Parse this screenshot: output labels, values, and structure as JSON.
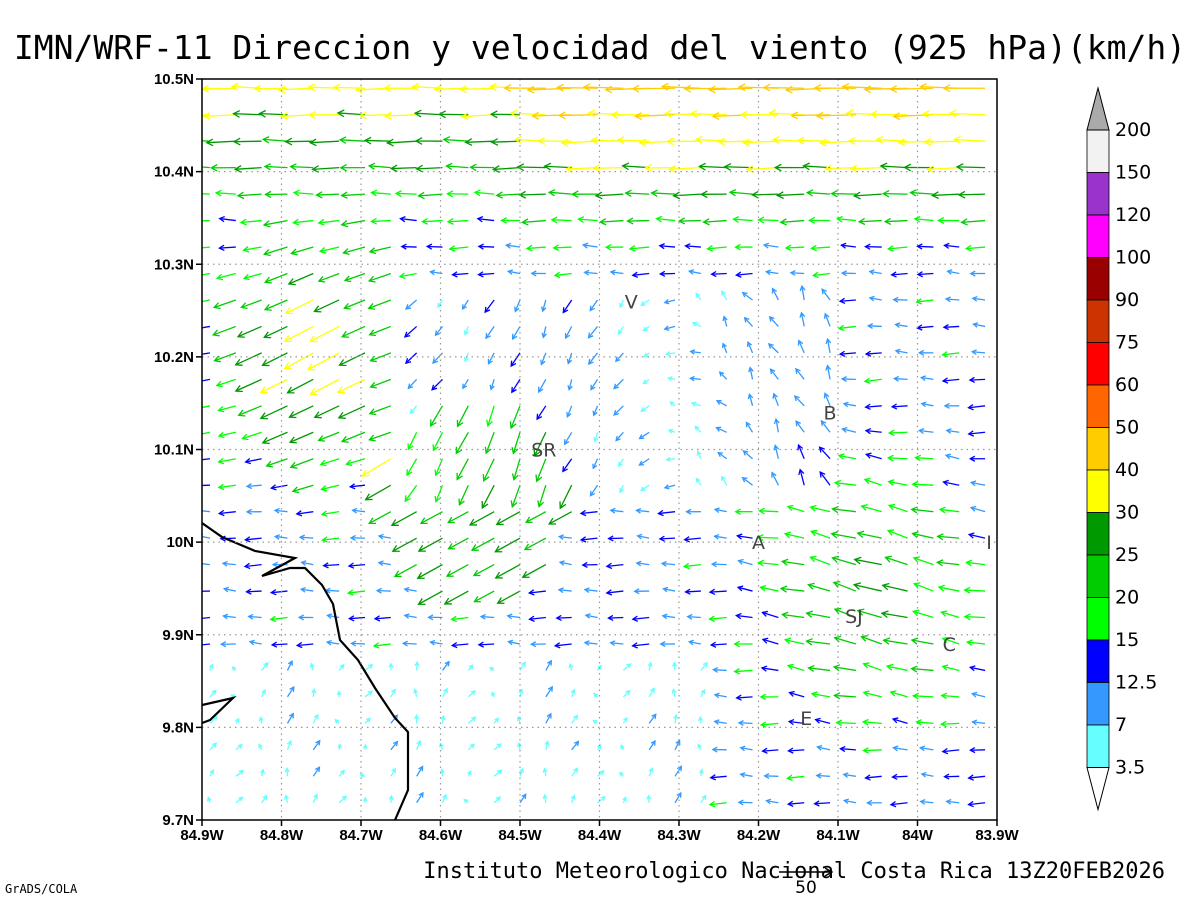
{
  "title": "IMN/WRF-11 Direccion y velocidad del viento (925 hPa)(km/h)",
  "footer": "Instituto Meteorologico Nacional Costa Rica 13Z20FEB2026",
  "credit": "GrADS/COLA",
  "reference_vector": {
    "label": "50"
  },
  "axes": {
    "lat_ticks": [
      "10.5N",
      "10.4N",
      "10.3N",
      "10.2N",
      "10.1N",
      "10N",
      "9.9N",
      "9.8N",
      "9.7N"
    ],
    "lon_ticks": [
      "84.9W",
      "84.8W",
      "84.7W",
      "84.6W",
      "84.5W",
      "84.4W",
      "84.3W",
      "84.2W",
      "84.1W",
      "84W",
      "83.9W"
    ]
  },
  "colorbar": {
    "labels": [
      "3.5",
      "7",
      "12.5",
      "15",
      "20",
      "25",
      "30",
      "40",
      "50",
      "60",
      "75",
      "90",
      "100",
      "120",
      "150",
      "200"
    ],
    "colors": [
      "#66ffff",
      "#3399ff",
      "#0000ff",
      "#00ff00",
      "#00cc00",
      "#009900",
      "#ffff00",
      "#ffcc00",
      "#ff6600",
      "#ff0000",
      "#cc3300",
      "#990000",
      "#ff00ff",
      "#9933cc",
      "#f2f2f2",
      "#aaaaaa"
    ]
  },
  "cities": [
    {
      "code": "V",
      "lon": -84.36,
      "lat": 10.26
    },
    {
      "code": "B",
      "lon": -84.11,
      "lat": 10.14
    },
    {
      "code": "SR",
      "lon": -84.47,
      "lat": 10.1
    },
    {
      "code": "A",
      "lon": -84.2,
      "lat": 10.0
    },
    {
      "code": "I",
      "lon": -83.91,
      "lat": 10.0
    },
    {
      "code": "SJ",
      "lon": -84.08,
      "lat": 9.92
    },
    {
      "code": "C",
      "lon": -83.96,
      "lat": 9.89
    },
    {
      "code": "E",
      "lon": -84.14,
      "lat": 9.81
    }
  ],
  "chart_data": {
    "type": "vector-field",
    "title": "IMN/WRF-11 Direccion y velocidad del viento (925 hPa)(km/h)",
    "xlim": [
      -84.9,
      -83.9
    ],
    "ylim": [
      9.7,
      10.5
    ],
    "grid": true,
    "colorbar_thresholds_kmh": [
      3.5,
      7,
      12.5,
      15,
      20,
      25,
      30,
      40,
      50,
      60,
      75,
      90,
      100,
      120,
      150,
      200
    ],
    "reference_vector_kmh": 50
  }
}
